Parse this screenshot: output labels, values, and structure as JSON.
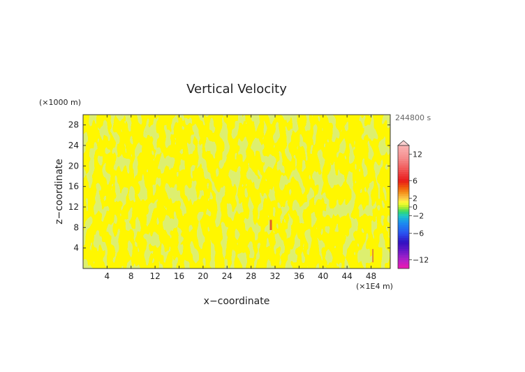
{
  "chart_data": {
    "type": "heatmap",
    "title": "Vertical Velocity",
    "xlabel": "x−coordinate",
    "ylabel": "z−coordinate",
    "x_unit": "(×1E4 m)",
    "y_unit": "(×1000 m)",
    "time_label": "244800 s",
    "xlim": [
      0,
      51.2
    ],
    "ylim": [
      0,
      30
    ],
    "x_ticks": [
      4,
      8,
      12,
      16,
      20,
      24,
      28,
      32,
      36,
      40,
      44,
      48
    ],
    "y_ticks": [
      4,
      8,
      12,
      16,
      20,
      24,
      28
    ],
    "field_description": "mostly near-zero values (yellow and light-green bands), small orange streaks near x=31,z=8 and x=48,z=2",
    "colorbar": {
      "ticks": [
        12,
        6,
        2,
        0,
        -2,
        -6,
        -12
      ],
      "tick_labels": [
        "12",
        "6",
        "2",
        "0",
        "−2",
        "−6",
        "−12"
      ],
      "range": [
        -14,
        14
      ],
      "stops": [
        {
          "v": 14,
          "c": "#fbb4b4"
        },
        {
          "v": 11,
          "c": "#f48a8a"
        },
        {
          "v": 8,
          "c": "#f04848"
        },
        {
          "v": 6,
          "c": "#e81a1a"
        },
        {
          "v": 4.5,
          "c": "#f05a0a"
        },
        {
          "v": 3.2,
          "c": "#f4961e"
        },
        {
          "v": 2,
          "c": "#fbc84a"
        },
        {
          "v": 1,
          "c": "#ffff33"
        },
        {
          "v": 0,
          "c": "#b8ee2a"
        },
        {
          "v": -1,
          "c": "#33d96a"
        },
        {
          "v": -2,
          "c": "#1ec8c8"
        },
        {
          "v": -3.5,
          "c": "#1a8ef0"
        },
        {
          "v": -6,
          "c": "#2a50f0"
        },
        {
          "v": -8,
          "c": "#3010c0"
        },
        {
          "v": -10,
          "c": "#6a18c8"
        },
        {
          "v": -12,
          "c": "#b020c8"
        },
        {
          "v": -14,
          "c": "#f018b0"
        }
      ]
    }
  }
}
